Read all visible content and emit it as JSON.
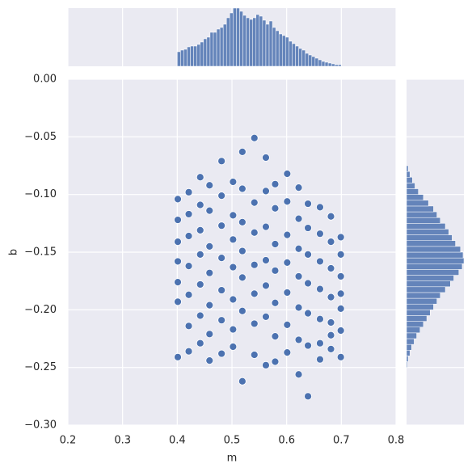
{
  "chart_data": [
    {
      "type": "scatter",
      "xlabel": "m",
      "ylabel": "b",
      "color": "#4c72b0",
      "grid": true,
      "xlim": [
        0.2,
        0.8
      ],
      "xticks": [
        0.2,
        0.3,
        0.4,
        0.5,
        0.6,
        0.7,
        0.8
      ],
      "ylim": [
        -0.3,
        0
      ],
      "yticks": [
        {
          "value": -0.3,
          "label": "−0.30"
        },
        {
          "value": -0.25,
          "label": "−0.25"
        },
        {
          "value": -0.2,
          "label": "−0.20"
        },
        {
          "value": -0.15,
          "label": "−0.15"
        },
        {
          "value": -0.1,
          "label": "−0.10"
        },
        {
          "value": -0.05,
          "label": "−0.05"
        },
        {
          "value": 0,
          "label": "0.00"
        }
      ],
      "x": [
        0.401,
        0.401,
        0.401,
        0.401,
        0.401,
        0.401,
        0.401,
        0.421,
        0.421,
        0.421,
        0.421,
        0.421,
        0.421,
        0.421,
        0.442,
        0.442,
        0.442,
        0.442,
        0.442,
        0.442,
        0.442,
        0.459,
        0.459,
        0.459,
        0.459,
        0.459,
        0.459,
        0.459,
        0.481,
        0.481,
        0.481,
        0.481,
        0.481,
        0.481,
        0.481,
        0.502,
        0.502,
        0.502,
        0.502,
        0.502,
        0.502,
        0.502,
        0.519,
        0.519,
        0.519,
        0.519,
        0.519,
        0.519,
        0.519,
        0.541,
        0.541,
        0.541,
        0.541,
        0.541,
        0.541,
        0.541,
        0.562,
        0.562,
        0.562,
        0.562,
        0.562,
        0.562,
        0.562,
        0.579,
        0.579,
        0.579,
        0.579,
        0.579,
        0.579,
        0.579,
        0.601,
        0.601,
        0.601,
        0.601,
        0.601,
        0.601,
        0.601,
        0.622,
        0.622,
        0.622,
        0.622,
        0.622,
        0.622,
        0.622,
        0.639,
        0.639,
        0.639,
        0.639,
        0.639,
        0.639,
        0.639,
        0.661,
        0.661,
        0.661,
        0.661,
        0.661,
        0.661,
        0.661,
        0.681,
        0.681,
        0.681,
        0.681,
        0.681,
        0.681,
        0.681,
        0.699,
        0.699,
        0.699,
        0.699,
        0.699,
        0.699,
        0.699
      ],
      "y": [
        -0.104,
        -0.122,
        -0.141,
        -0.158,
        -0.176,
        -0.193,
        -0.241,
        -0.098,
        -0.117,
        -0.136,
        -0.162,
        -0.187,
        -0.214,
        -0.236,
        -0.085,
        -0.109,
        -0.131,
        -0.152,
        -0.178,
        -0.205,
        -0.229,
        -0.092,
        -0.114,
        -0.145,
        -0.168,
        -0.196,
        -0.221,
        -0.244,
        -0.071,
        -0.101,
        -0.127,
        -0.155,
        -0.183,
        -0.209,
        -0.238,
        -0.089,
        -0.118,
        -0.139,
        -0.163,
        -0.191,
        -0.217,
        -0.232,
        -0.063,
        -0.095,
        -0.124,
        -0.149,
        -0.172,
        -0.201,
        -0.262,
        -0.051,
        -0.107,
        -0.133,
        -0.161,
        -0.186,
        -0.212,
        -0.239,
        -0.068,
        -0.097,
        -0.128,
        -0.157,
        -0.179,
        -0.206,
        -0.248,
        -0.091,
        -0.112,
        -0.143,
        -0.166,
        -0.194,
        -0.223,
        -0.245,
        -0.082,
        -0.106,
        -0.135,
        -0.159,
        -0.185,
        -0.213,
        -0.237,
        -0.094,
        -0.121,
        -0.147,
        -0.171,
        -0.198,
        -0.226,
        -0.256,
        -0.108,
        -0.129,
        -0.152,
        -0.177,
        -0.203,
        -0.231,
        -0.275,
        -0.111,
        -0.134,
        -0.158,
        -0.182,
        -0.208,
        -0.229,
        -0.243,
        -0.119,
        -0.141,
        -0.164,
        -0.189,
        -0.211,
        -0.234,
        -0.222,
        -0.137,
        -0.152,
        -0.171,
        -0.186,
        -0.199,
        -0.218,
        -0.241
      ]
    },
    {
      "type": "histogram",
      "orientation": "vertical",
      "color": "#4c72b0",
      "bins": [
        0.4,
        0.406,
        0.412,
        0.418,
        0.424,
        0.43,
        0.436,
        0.442,
        0.448,
        0.454,
        0.46,
        0.466,
        0.472,
        0.478,
        0.484,
        0.49,
        0.496,
        0.502,
        0.508,
        0.514,
        0.52,
        0.526,
        0.532,
        0.538,
        0.544,
        0.55,
        0.556,
        0.562,
        0.568,
        0.574,
        0.58,
        0.586,
        0.592,
        0.598,
        0.604,
        0.61,
        0.616,
        0.622,
        0.628,
        0.634,
        0.64,
        0.646,
        0.652,
        0.658,
        0.664,
        0.67,
        0.676,
        0.682,
        0.688,
        0.694,
        0.7
      ],
      "counts": [
        18,
        20,
        21,
        24,
        25,
        25,
        27,
        30,
        34,
        36,
        42,
        42,
        46,
        48,
        52,
        60,
        66,
        72,
        72,
        68,
        63,
        60,
        58,
        60,
        64,
        62,
        57,
        52,
        56,
        48,
        44,
        40,
        38,
        36,
        31,
        28,
        25,
        22,
        20,
        16,
        14,
        12,
        10,
        8,
        6,
        5,
        4,
        3,
        2,
        2
      ]
    },
    {
      "type": "histogram",
      "orientation": "horizontal",
      "color": "#4c72b0",
      "bins": [
        -0.25,
        -0.245,
        -0.24,
        -0.235,
        -0.23,
        -0.225,
        -0.22,
        -0.215,
        -0.21,
        -0.205,
        -0.2,
        -0.195,
        -0.19,
        -0.185,
        -0.18,
        -0.175,
        -0.17,
        -0.165,
        -0.16,
        -0.155,
        -0.15,
        -0.145,
        -0.14,
        -0.135,
        -0.13,
        -0.125,
        -0.12,
        -0.115,
        -0.11,
        -0.105,
        -0.1,
        -0.095,
        -0.09,
        -0.085,
        -0.08,
        -0.075
      ],
      "counts": [
        1,
        2,
        4,
        6,
        9,
        12,
        16,
        20,
        24,
        28,
        32,
        36,
        40,
        46,
        52,
        56,
        62,
        66,
        68,
        67,
        64,
        58,
        54,
        50,
        46,
        40,
        36,
        32,
        26,
        20,
        14,
        10,
        7,
        4,
        2
      ]
    }
  ]
}
